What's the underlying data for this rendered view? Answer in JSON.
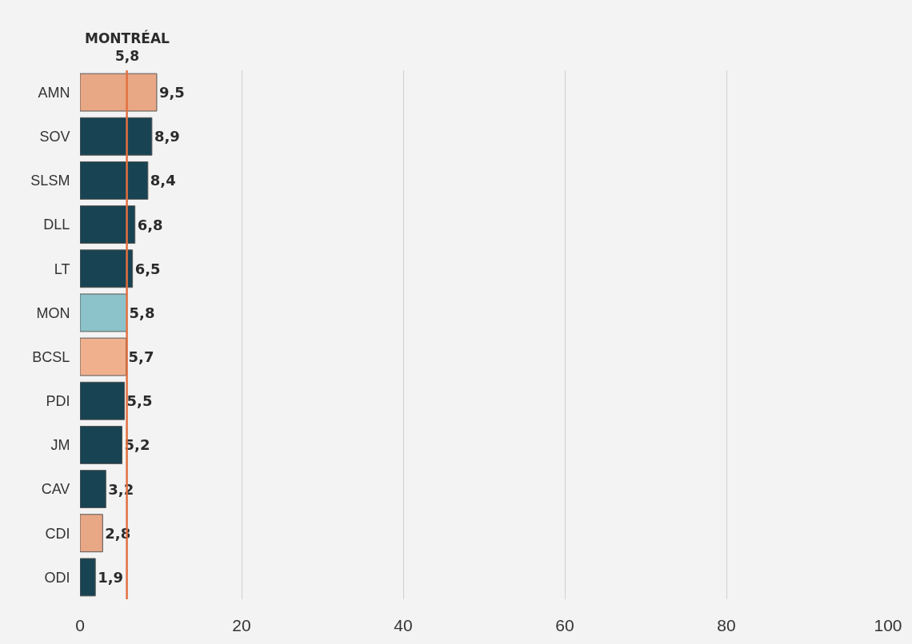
{
  "chart_data": {
    "type": "bar",
    "orientation": "horizontal",
    "categories": [
      "AMN",
      "SOV",
      "SLSM",
      "DLL",
      "LT",
      "MON",
      "BCSL",
      "PDI",
      "JM",
      "CAV",
      "CDI",
      "ODI"
    ],
    "values": [
      9.5,
      8.9,
      8.4,
      6.8,
      6.5,
      5.8,
      5.7,
      5.5,
      5.2,
      3.2,
      2.8,
      1.9
    ],
    "colors": [
      "#e8a785",
      "#184352",
      "#184352",
      "#184352",
      "#184352",
      "#8cc3ca",
      "#f0b08e",
      "#184352",
      "#184352",
      "#184352",
      "#e8a785",
      "#184352"
    ],
    "value_labels": [
      "9,5",
      "8,9",
      "8,4",
      "6,8",
      "6,5",
      "5,8",
      "5,7",
      "5,5",
      "5,2",
      "3,2",
      "2,8",
      "1,9"
    ],
    "xlim": [
      0,
      100
    ],
    "xticks": [
      0,
      20,
      40,
      60,
      80,
      100
    ],
    "grid": "x",
    "ref_lines": [
      {
        "axis": "x",
        "value": 5.8,
        "label": "MONTRÉAL\n5,8",
        "color": "#e2703f"
      }
    ]
  }
}
